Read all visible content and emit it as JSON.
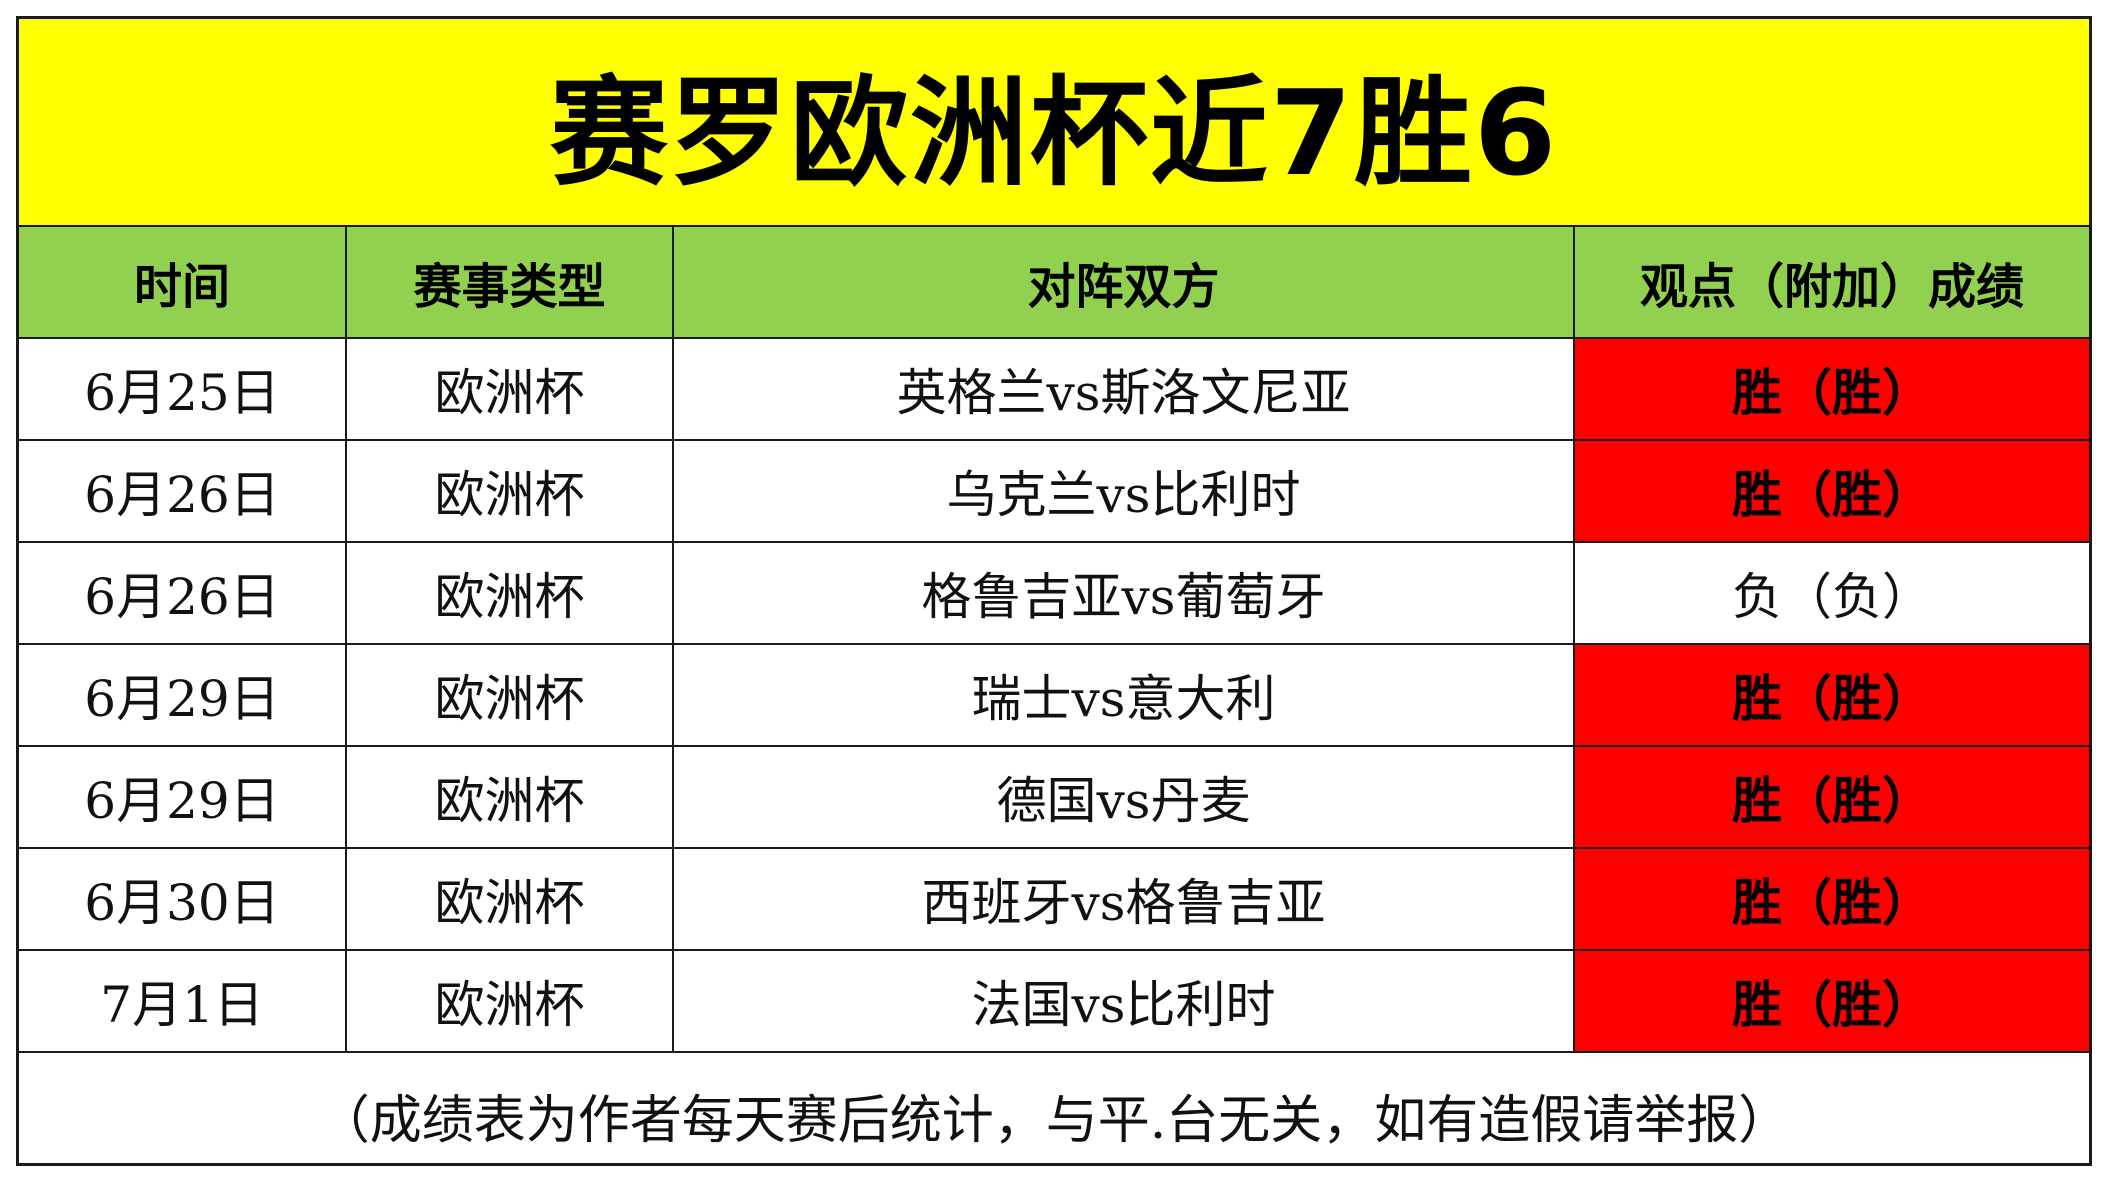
{
  "title": "赛罗欧洲杯近7胜6",
  "columns": [
    "时间",
    "赛事类型",
    "对阵双方",
    "观点（附加）成绩"
  ],
  "rows": [
    {
      "date": "6月25日",
      "type": "欧洲杯",
      "match": "英格兰vs斯洛文尼亚",
      "result": "胜（胜）",
      "outcome": "win"
    },
    {
      "date": "6月26日",
      "type": "欧洲杯",
      "match": "乌克兰vs比利时",
      "result": "胜（胜）",
      "outcome": "win"
    },
    {
      "date": "6月26日",
      "type": "欧洲杯",
      "match": "格鲁吉亚vs葡萄牙",
      "result": "负（负）",
      "outcome": "loss"
    },
    {
      "date": "6月29日",
      "type": "欧洲杯",
      "match": "瑞士vs意大利",
      "result": "胜（胜）",
      "outcome": "win"
    },
    {
      "date": "6月29日",
      "type": "欧洲杯",
      "match": "德国vs丹麦",
      "result": "胜（胜）",
      "outcome": "win"
    },
    {
      "date": "6月30日",
      "type": "欧洲杯",
      "match": "西班牙vs格鲁吉亚",
      "result": "胜（胜）",
      "outcome": "win"
    },
    {
      "date": "7月1日",
      "type": "欧洲杯",
      "match": "法国vs比利时",
      "result": "胜（胜）",
      "outcome": "win"
    }
  ],
  "footer": "（成绩表为作者每天赛后统计，与平.台无关，如有造假请举报）",
  "colors": {
    "title_bg": "#ffff00",
    "header_bg": "#92d050",
    "win_bg": "#ff0000",
    "loss_bg": "#ffffff"
  }
}
